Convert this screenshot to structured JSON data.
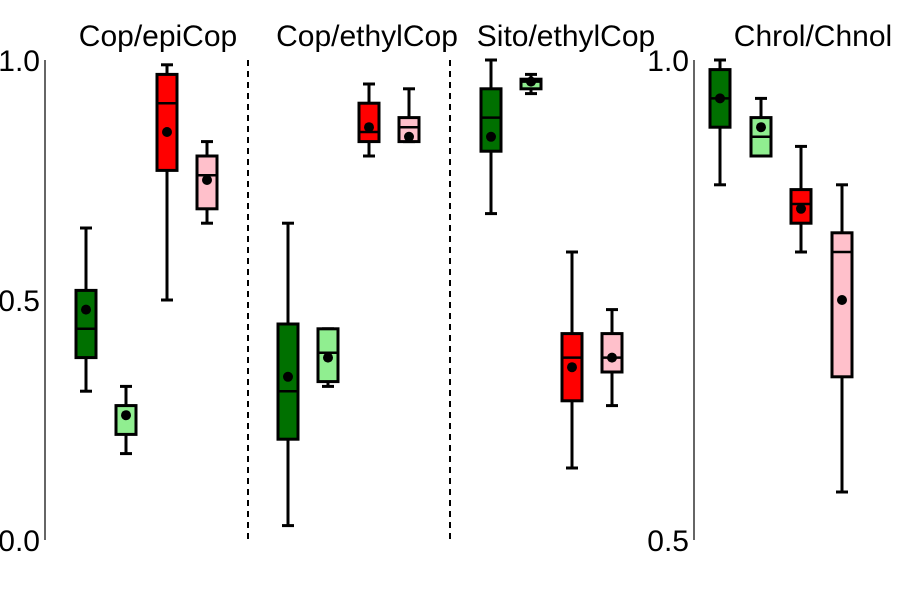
{
  "chart_data": [
    {
      "type": "box",
      "title": "Cop/epiCop",
      "axis": "left",
      "ylim": [
        0.0,
        1.0
      ],
      "yticks": [
        {
          "value": 1.0,
          "label": "1.0"
        },
        {
          "value": 0.5,
          "label": "0.5"
        },
        {
          "value": 0.0,
          "label": "0.0"
        }
      ],
      "boxes": [
        {
          "color": "#007000",
          "whisker_low": 0.31,
          "q1": 0.38,
          "median": 0.44,
          "q3": 0.52,
          "whisker_high": 0.65,
          "mean": 0.48
        },
        {
          "color": "#90ee90",
          "whisker_low": 0.18,
          "q1": 0.22,
          "median": 0.28,
          "q3": 0.28,
          "whisker_high": 0.32,
          "mean": 0.26
        },
        {
          "color": "#ff0000",
          "whisker_low": 0.5,
          "q1": 0.77,
          "median": 0.91,
          "q3": 0.97,
          "whisker_high": 0.99,
          "mean": 0.85
        },
        {
          "color": "#ffc0cb",
          "whisker_low": 0.66,
          "q1": 0.69,
          "median": 0.76,
          "q3": 0.8,
          "whisker_high": 0.83,
          "mean": 0.75
        }
      ]
    },
    {
      "type": "box",
      "title": "Cop/ethylCop",
      "axis": "none",
      "ylim": [
        0.0,
        1.0
      ],
      "boxes": [
        {
          "color": "#007000",
          "whisker_low": 0.03,
          "q1": 0.21,
          "median": 0.31,
          "q3": 0.45,
          "whisker_high": 0.66,
          "mean": 0.34
        },
        {
          "color": "#90ee90",
          "whisker_low": 0.32,
          "q1": 0.33,
          "median": 0.39,
          "q3": 0.44,
          "whisker_high": 0.44,
          "mean": 0.38
        },
        {
          "color": "#ff0000",
          "whisker_low": 0.8,
          "q1": 0.83,
          "median": 0.85,
          "q3": 0.91,
          "whisker_high": 0.95,
          "mean": 0.86
        },
        {
          "color": "#ffc0cb",
          "whisker_low": 0.83,
          "q1": 0.83,
          "median": 0.86,
          "q3": 0.88,
          "whisker_high": 0.94,
          "mean": 0.84
        }
      ]
    },
    {
      "type": "box",
      "title": "Sito/ethylCop",
      "axis": "none",
      "ylim": [
        0.0,
        1.0
      ],
      "boxes": [
        {
          "color": "#007000",
          "whisker_low": 0.68,
          "q1": 0.81,
          "median": 0.88,
          "q3": 0.94,
          "whisker_high": 1.0,
          "mean": 0.84
        },
        {
          "color": "#90ee90",
          "whisker_low": 0.93,
          "q1": 0.94,
          "median": 0.955,
          "q3": 0.96,
          "whisker_high": 0.97,
          "mean": 0.955
        },
        {
          "color": "#ff0000",
          "whisker_low": 0.15,
          "q1": 0.29,
          "median": 0.38,
          "q3": 0.43,
          "whisker_high": 0.6,
          "mean": 0.36
        },
        {
          "color": "#ffc0cb",
          "whisker_low": 0.28,
          "q1": 0.35,
          "median": 0.38,
          "q3": 0.43,
          "whisker_high": 0.48,
          "mean": 0.38
        }
      ]
    },
    {
      "type": "box",
      "title": "Chrol/Chnol",
      "axis": "left",
      "ylim": [
        0.5,
        1.0
      ],
      "yticks": [
        {
          "value": 1.0,
          "label": "1.0"
        },
        {
          "value": 0.5,
          "label": "0.5"
        }
      ],
      "boxes": [
        {
          "color": "#007000",
          "whisker_low": 0.87,
          "q1": 0.93,
          "median": 0.96,
          "q3": 0.99,
          "whisker_high": 1.0,
          "mean": 0.96
        },
        {
          "color": "#90ee90",
          "whisker_low": 0.9,
          "q1": 0.9,
          "median": 0.92,
          "q3": 0.94,
          "whisker_high": 0.96,
          "mean": 0.93
        },
        {
          "color": "#ff0000",
          "whisker_low": 0.8,
          "q1": 0.83,
          "median": 0.85,
          "q3": 0.865,
          "whisker_high": 0.91,
          "mean": 0.845
        },
        {
          "color": "#ffc0cb",
          "whisker_low": 0.55,
          "q1": 0.67,
          "median": 0.8,
          "q3": 0.82,
          "whisker_high": 0.87,
          "mean": 0.75
        }
      ]
    }
  ]
}
